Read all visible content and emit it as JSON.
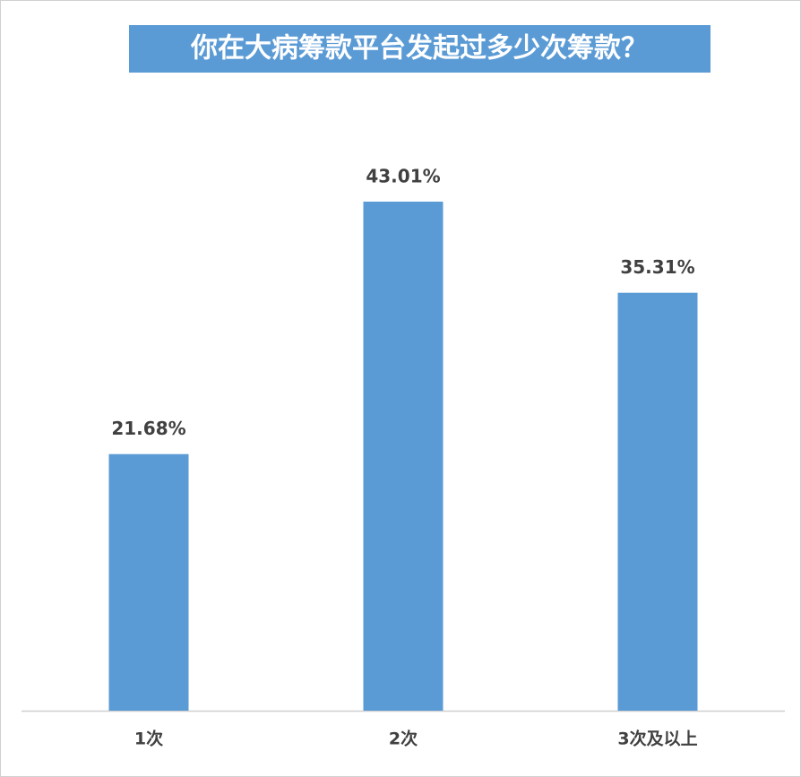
{
  "chart_data": {
    "type": "bar",
    "title": "你在大病筹款平台发起过多少次筹款？",
    "categories": [
      "1次",
      "2次",
      "3次及以上"
    ],
    "values": [
      21.68,
      43.01,
      35.31
    ],
    "value_labels": [
      "21.68%",
      "43.01%",
      "35.31%"
    ],
    "color": "#5b9bd5"
  }
}
